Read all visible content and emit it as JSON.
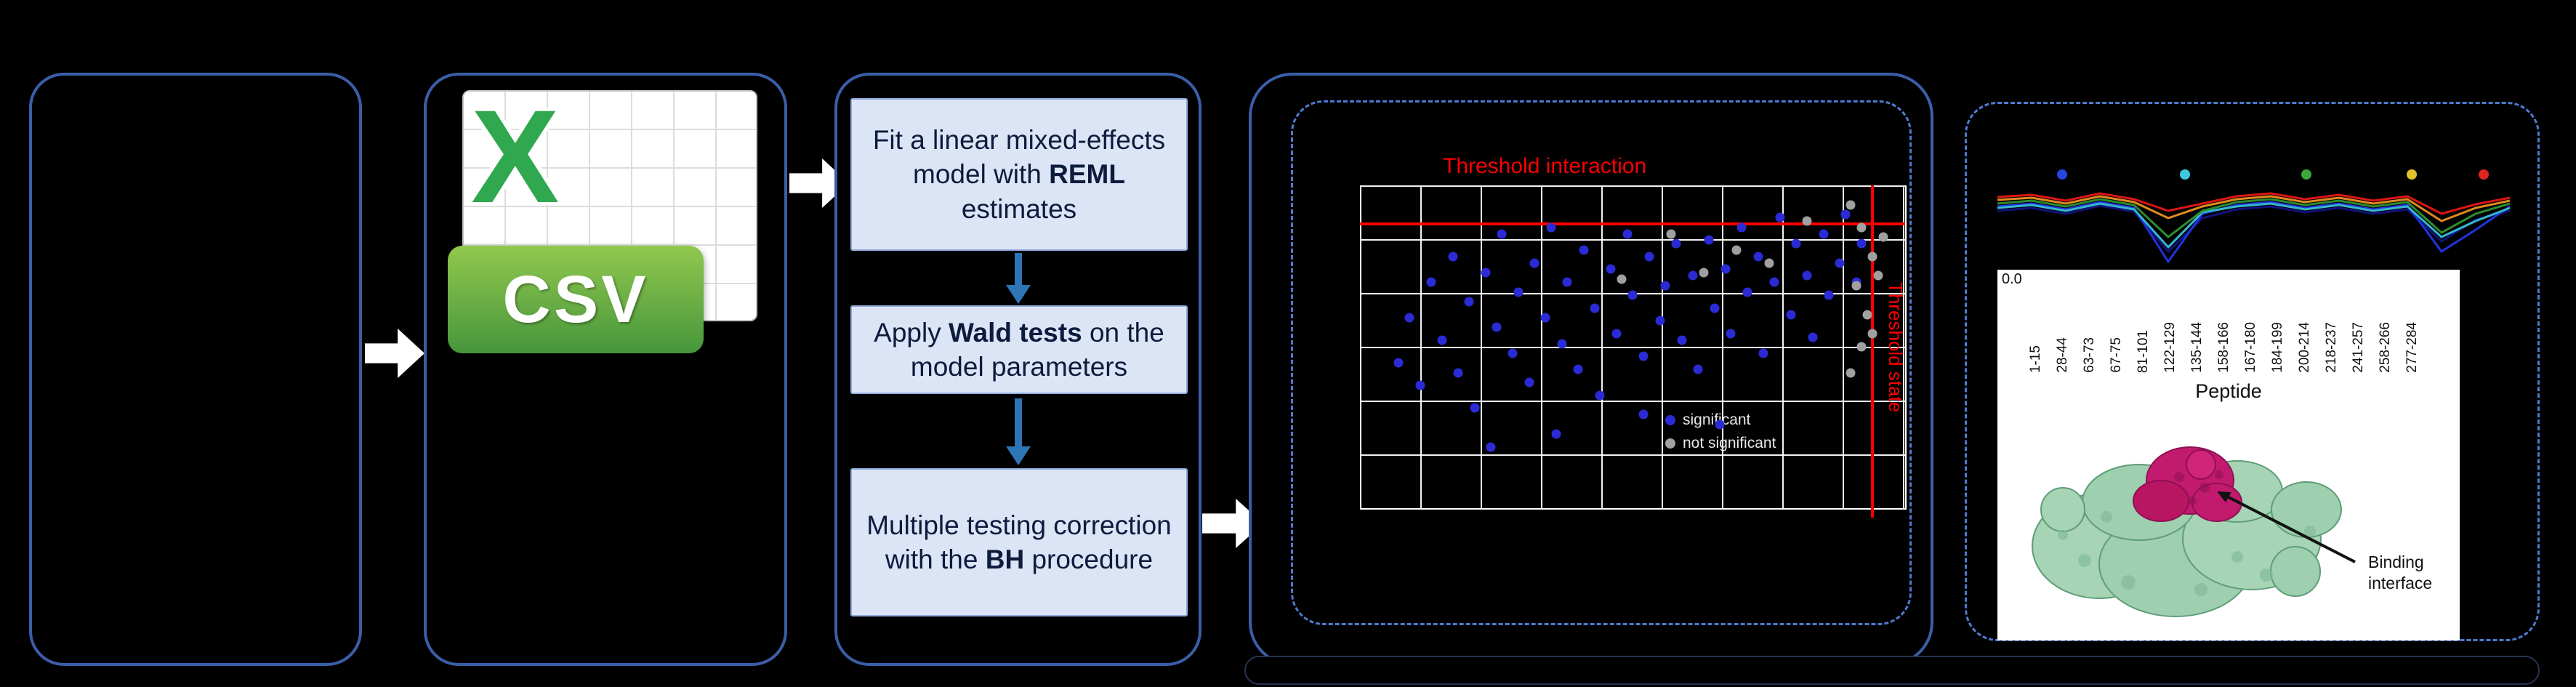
{
  "csv_icon": {
    "letter": "X",
    "label": "CSV"
  },
  "workflow": {
    "steps": [
      {
        "pre": "Fit a linear mixed-effects model with ",
        "bold": "REML",
        "post": " estimates"
      },
      {
        "pre": "Apply ",
        "bold": "Wald tests",
        "post": " on the model parameters"
      },
      {
        "pre": "Multiple testing correction with the ",
        "bold": "BH",
        "post": " procedure"
      }
    ]
  },
  "scatter": {
    "title": "Threshold interaction",
    "side_label": "Threshold state",
    "colors": {
      "significant": "#2b2bd6",
      "not_significant": "#a0a0a0",
      "threshold": "#ff0000"
    },
    "legend": [
      {
        "label": "significant",
        "color": "#2b2bd6"
      },
      {
        "label": "not significant",
        "color": "#a0a0a0"
      }
    ],
    "blue_points": [
      [
        7,
        55
      ],
      [
        9,
        41
      ],
      [
        11,
        62
      ],
      [
        13,
        30
      ],
      [
        15,
        48
      ],
      [
        17,
        22
      ],
      [
        18,
        58
      ],
      [
        20,
        36
      ],
      [
        21,
        69
      ],
      [
        23,
        27
      ],
      [
        25,
        44
      ],
      [
        26,
        15
      ],
      [
        28,
        52
      ],
      [
        29,
        33
      ],
      [
        31,
        61
      ],
      [
        32,
        24
      ],
      [
        34,
        41
      ],
      [
        35,
        13
      ],
      [
        37,
        49
      ],
      [
        38,
        30
      ],
      [
        40,
        57
      ],
      [
        41,
        20
      ],
      [
        43,
        38
      ],
      [
        44,
        65
      ],
      [
        46,
        26
      ],
      [
        47,
        46
      ],
      [
        49,
        15
      ],
      [
        50,
        34
      ],
      [
        52,
        53
      ],
      [
        53,
        22
      ],
      [
        55,
        42
      ],
      [
        56,
        31
      ],
      [
        58,
        18
      ],
      [
        59,
        48
      ],
      [
        61,
        28
      ],
      [
        62,
        57
      ],
      [
        64,
        17
      ],
      [
        65,
        38
      ],
      [
        67,
        26
      ],
      [
        68,
        46
      ],
      [
        70,
        13
      ],
      [
        71,
        33
      ],
      [
        73,
        22
      ],
      [
        74,
        52
      ],
      [
        76,
        30
      ],
      [
        77,
        10
      ],
      [
        79,
        40
      ],
      [
        80,
        18
      ],
      [
        82,
        28
      ],
      [
        83,
        47
      ],
      [
        85,
        15
      ],
      [
        86,
        34
      ],
      [
        88,
        24
      ],
      [
        89,
        9
      ],
      [
        91,
        30
      ],
      [
        92,
        18
      ],
      [
        36,
        77
      ],
      [
        52,
        71
      ],
      [
        24,
        81
      ],
      [
        66,
        74
      ]
    ],
    "gray_points": [
      [
        90,
        6
      ],
      [
        92,
        13
      ],
      [
        94,
        22
      ],
      [
        91,
        31
      ],
      [
        93,
        40
      ],
      [
        95,
        28
      ],
      [
        92,
        50
      ],
      [
        90,
        58
      ],
      [
        94,
        46
      ],
      [
        96,
        16
      ],
      [
        57,
        15
      ],
      [
        63,
        27
      ],
      [
        69,
        20
      ],
      [
        75,
        24
      ],
      [
        48,
        29
      ],
      [
        82,
        11
      ]
    ]
  },
  "uptake": {
    "y_tick": "0.0",
    "markers": [
      {
        "x": 97,
        "color": "#2746e0"
      },
      {
        "x": 266,
        "color": "#3fc8e0"
      },
      {
        "x": 433,
        "color": "#3aa83a"
      },
      {
        "x": 578,
        "color": "#e0c32a"
      },
      {
        "x": 677,
        "color": "#e02525"
      }
    ],
    "series": [
      {
        "color": "#10127e",
        "values": [
          62,
          58,
          66,
          55,
          63,
          118,
          72,
          60,
          56,
          64,
          58,
          66,
          60,
          104,
          74,
          62
        ]
      },
      {
        "color": "#2233dd",
        "values": [
          56,
          52,
          60,
          50,
          58,
          132,
          66,
          54,
          50,
          58,
          52,
          60,
          54,
          118,
          88,
          56
        ]
      },
      {
        "color": "#35b8cc",
        "values": [
          58,
          54,
          62,
          52,
          60,
          112,
          64,
          56,
          52,
          60,
          54,
          62,
          56,
          98,
          76,
          58
        ]
      },
      {
        "color": "#2e8b2e",
        "values": [
          52,
          48,
          56,
          46,
          54,
          98,
          62,
          50,
          46,
          54,
          48,
          56,
          50,
          92,
          66,
          52
        ]
      },
      {
        "color": "#e08a1e",
        "values": [
          47,
          44,
          52,
          42,
          50,
          72,
          56,
          46,
          42,
          50,
          44,
          52,
          46,
          76,
          58,
          48
        ]
      },
      {
        "color": "#dd1515",
        "values": [
          43,
          40,
          48,
          38,
          46,
          62,
          52,
          42,
          38,
          46,
          40,
          48,
          42,
          66,
          53,
          44
        ]
      }
    ]
  },
  "results": {
    "peptide_labels": [
      "1-15",
      "28-44",
      "63-73",
      "67-75",
      "81-101",
      "122-129",
      "135-144",
      "158-166",
      "167-180",
      "184-199",
      "200-214",
      "218-237",
      "241-257",
      "258-266",
      "277-284"
    ],
    "x_axis_title": "Peptide",
    "binding_label_line1": "Binding",
    "binding_label_line2": "interface"
  }
}
